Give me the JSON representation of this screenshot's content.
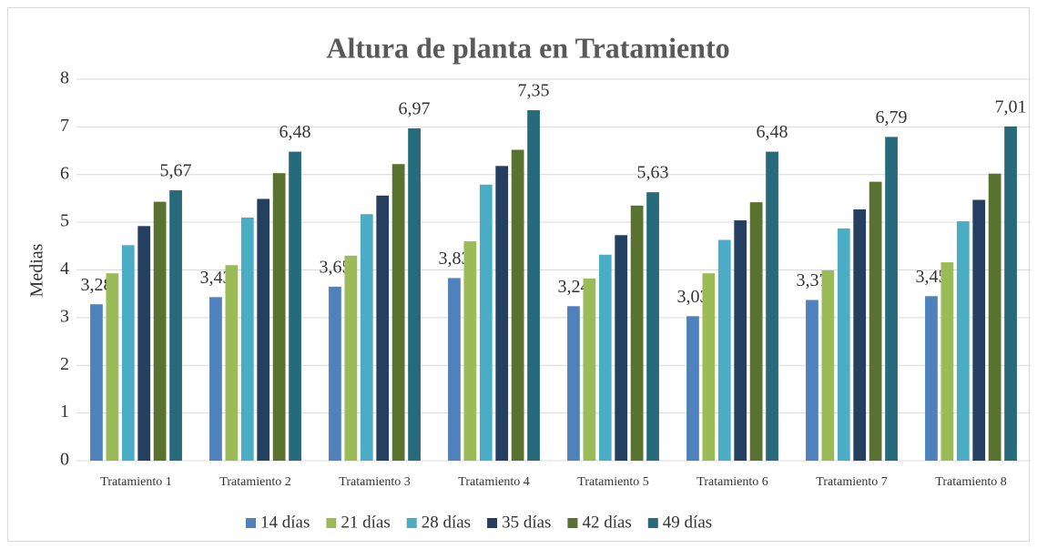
{
  "chart_data": {
    "type": "bar",
    "title": "Altura de planta en Tratamiento",
    "y_label": "Medias",
    "categories": [
      "Tratamiento 1",
      "Tratamiento 2",
      "Tratamiento 3",
      "Tratamiento 4",
      "Tratamiento 5",
      "Tratamiento 6",
      "Tratamiento 7",
      "Tratamiento 8"
    ],
    "series": [
      {
        "name": "14 días",
        "color": "#4f81bd",
        "values": [
          3.28,
          3.43,
          3.65,
          3.83,
          3.24,
          3.03,
          3.37,
          3.45
        ],
        "value_labels": [
          "3,28",
          "3,43",
          "3,65",
          "3,83",
          "3,24",
          "3,03",
          "3,37",
          "3,45"
        ]
      },
      {
        "name": "21 días",
        "color": "#9bbb59",
        "values": [
          3.93,
          4.1,
          4.3,
          4.6,
          3.82,
          3.93,
          3.99,
          4.16
        ]
      },
      {
        "name": "28 días",
        "color": "#4bacc6",
        "values": [
          4.52,
          5.1,
          5.17,
          5.79,
          4.32,
          4.63,
          4.87,
          5.02
        ]
      },
      {
        "name": "35 días",
        "color": "#243f60",
        "values": [
          4.92,
          5.49,
          5.56,
          6.18,
          4.73,
          5.04,
          5.27,
          5.47
        ]
      },
      {
        "name": "42 días",
        "color": "#5a7230",
        "values": [
          5.43,
          6.03,
          6.22,
          6.52,
          5.35,
          5.42,
          5.85,
          6.02
        ]
      },
      {
        "name": "49 días",
        "color": "#276a7c",
        "values": [
          5.67,
          6.48,
          6.97,
          7.35,
          5.63,
          6.48,
          6.79,
          7.01
        ],
        "value_labels": [
          "5,67",
          "6,48",
          "6,97",
          "7,35",
          "5,63",
          "6,48",
          "6,79",
          "7,01"
        ]
      }
    ],
    "ylim": [
      0,
      8
    ],
    "yticks": [
      0,
      1,
      2,
      3,
      4,
      5,
      6,
      7,
      8
    ],
    "grid": true,
    "legend": "bottom"
  }
}
